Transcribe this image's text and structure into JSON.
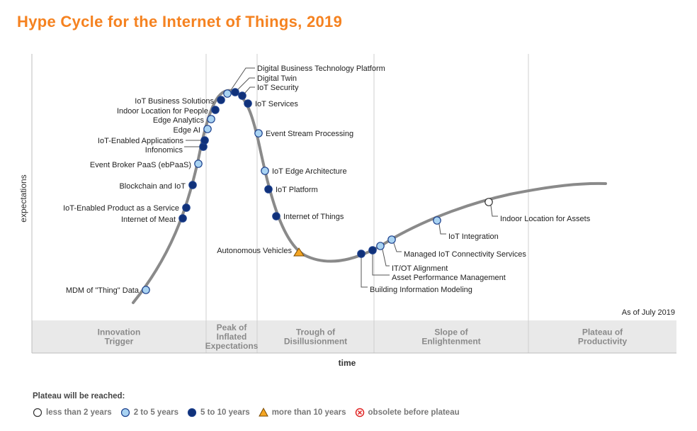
{
  "title": "Hype Cycle for the Internet of Things, 2019",
  "chart_data": {
    "type": "scatter",
    "title": "Hype Cycle for the Internet of Things, 2019",
    "xlabel": "time",
    "ylabel": "expectations",
    "as_of": "As of July 2019",
    "phases": [
      "Innovation Trigger",
      "Peak of Inflated Expectations",
      "Trough of Disillusionment",
      "Slope of Enlightenment",
      "Plateau of Productivity"
    ],
    "points": [
      {
        "name": "MDM of \"Thing\" Data",
        "category": "2 to 5 years"
      },
      {
        "name": "Internet of Meat",
        "category": "5 to 10 years"
      },
      {
        "name": "IoT-Enabled Product as a Service",
        "category": "5 to 10 years"
      },
      {
        "name": "Blockchain and IoT",
        "category": "5 to 10 years"
      },
      {
        "name": "Event Broker PaaS (ebPaaS)",
        "category": "2 to 5 years"
      },
      {
        "name": "Infonomics",
        "category": "5 to 10 years"
      },
      {
        "name": "IoT-Enabled Applications",
        "category": "5 to 10 years"
      },
      {
        "name": "Edge AI",
        "category": "2 to 5 years"
      },
      {
        "name": "Edge Analytics",
        "category": "2 to 5 years"
      },
      {
        "name": "Indoor Location for People",
        "category": "5 to 10 years"
      },
      {
        "name": "IoT Business Solutions",
        "category": "5 to 10 years"
      },
      {
        "name": "Digital Business Technology Platform",
        "category": "2 to 5 years"
      },
      {
        "name": "Digital Twin",
        "category": "5 to 10 years"
      },
      {
        "name": "IoT Security",
        "category": "5 to 10 years"
      },
      {
        "name": "IoT Services",
        "category": "5 to 10 years"
      },
      {
        "name": "Event Stream Processing",
        "category": "2 to 5 years"
      },
      {
        "name": "IoT Edge Architecture",
        "category": "2 to 5 years"
      },
      {
        "name": "IoT Platform",
        "category": "5 to 10 years"
      },
      {
        "name": "Internet of Things",
        "category": "5 to 10 years"
      },
      {
        "name": "Autonomous Vehicles",
        "category": "more than 10 years"
      },
      {
        "name": "Building Information Modeling",
        "category": "5 to 10 years"
      },
      {
        "name": "Asset Performance Management",
        "category": "5 to 10 years"
      },
      {
        "name": "IT/OT Alignment",
        "category": "2 to 5 years"
      },
      {
        "name": "Managed IoT Connectivity Services",
        "category": "2 to 5 years"
      },
      {
        "name": "IoT Integration",
        "category": "2 to 5 years"
      },
      {
        "name": "Indoor Location for Assets",
        "category": "less than 2 years"
      }
    ]
  },
  "legend": {
    "title": "Plateau will be reached:",
    "items": [
      {
        "label": "less than 2 years",
        "marker": "circle",
        "color": "#ffffff"
      },
      {
        "label": "2 to 5 years",
        "marker": "circle",
        "color": "#a9d3f2"
      },
      {
        "label": "5 to 10 years",
        "marker": "circle",
        "color": "#10317a"
      },
      {
        "label": "more than 10 years",
        "marker": "triangle",
        "color": "#f5a623"
      },
      {
        "label": "obsolete before plateau",
        "marker": "cross-circle",
        "color": "#e02424"
      }
    ]
  },
  "colors": {
    "title": "#f58220",
    "curve": "#8a8a8a",
    "phase_band": "#e9e9e9",
    "marker_outline": "#1b3f8c"
  }
}
